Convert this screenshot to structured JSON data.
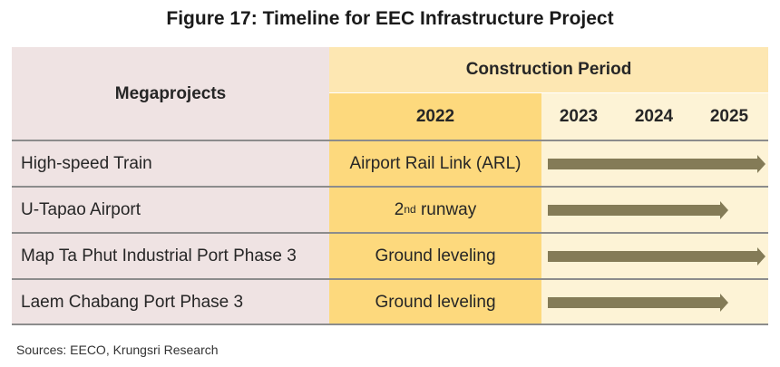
{
  "title": "Figure 17: Timeline for EEC Infrastructure Project",
  "header": {
    "megaprojects": "Megaprojects",
    "construction_period": "Construction Period",
    "years": [
      "2022",
      "2023",
      "2024",
      "2025"
    ]
  },
  "rows": [
    {
      "name": "High-speed Train",
      "phase_2022": "Airport Rail Link (ARL)",
      "ends": "2025"
    },
    {
      "name": "U-Tapao Airport",
      "phase_2022_num": "2",
      "phase_2022_sup": "nd",
      "phase_2022_rest": " runway",
      "ends": "2025"
    },
    {
      "name": "Map Ta Phut Industrial Port Phase 3",
      "phase_2022": "Ground leveling",
      "ends": "2025"
    },
    {
      "name": "Laem Chabang Port Phase 3",
      "phase_2022": "Ground leveling",
      "ends": "2025"
    }
  ],
  "colors": {
    "name_bg": "#efe3e3",
    "year2022_bg": "#fdd97d",
    "later_years_bg": "#fdf3d6",
    "bar": "#847b57"
  },
  "source": "Sources: EECO, Krungsri Research"
}
